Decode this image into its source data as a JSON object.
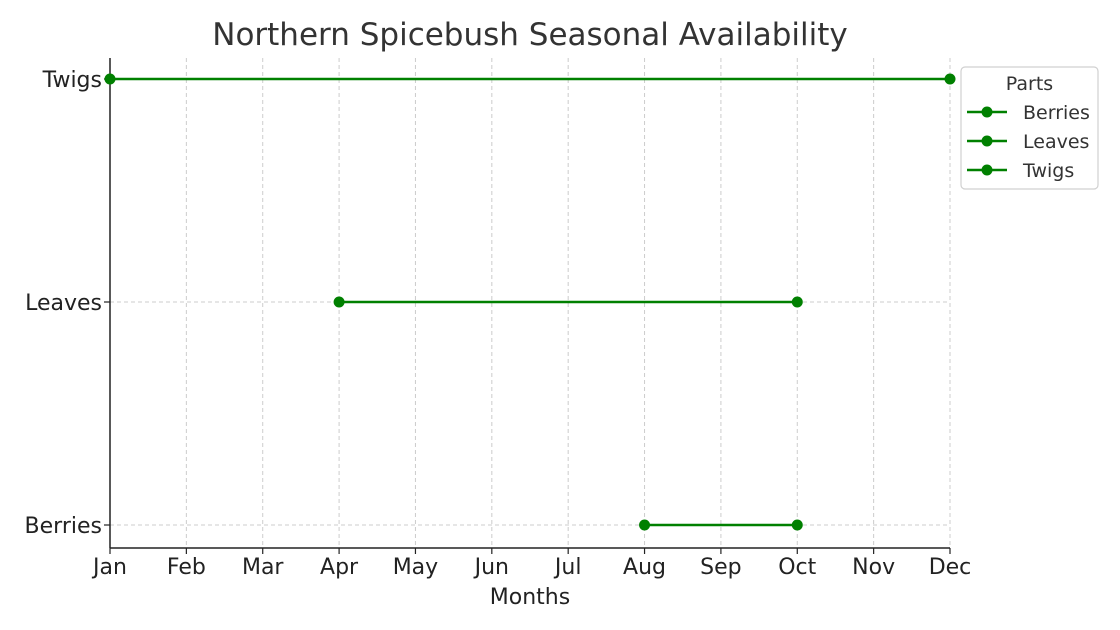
{
  "chart_data": {
    "type": "line",
    "title": "Northern Spicebush Seasonal Availability",
    "xlabel": "Months",
    "ylabel": "",
    "x_categories": [
      "Jan",
      "Feb",
      "Mar",
      "Apr",
      "May",
      "Jun",
      "Jul",
      "Aug",
      "Sep",
      "Oct",
      "Nov",
      "Dec"
    ],
    "y_categories": [
      "Berries",
      "Leaves",
      "Twigs"
    ],
    "series": [
      {
        "name": "Berries",
        "start": "Aug",
        "end": "Oct",
        "color": "#008000"
      },
      {
        "name": "Leaves",
        "start": "Apr",
        "end": "Oct",
        "color": "#008000"
      },
      {
        "name": "Twigs",
        "start": "Jan",
        "end": "Dec",
        "color": "#008000"
      }
    ],
    "grid": true,
    "legend": {
      "title": "Parts",
      "position": "upper-right-outside"
    }
  }
}
